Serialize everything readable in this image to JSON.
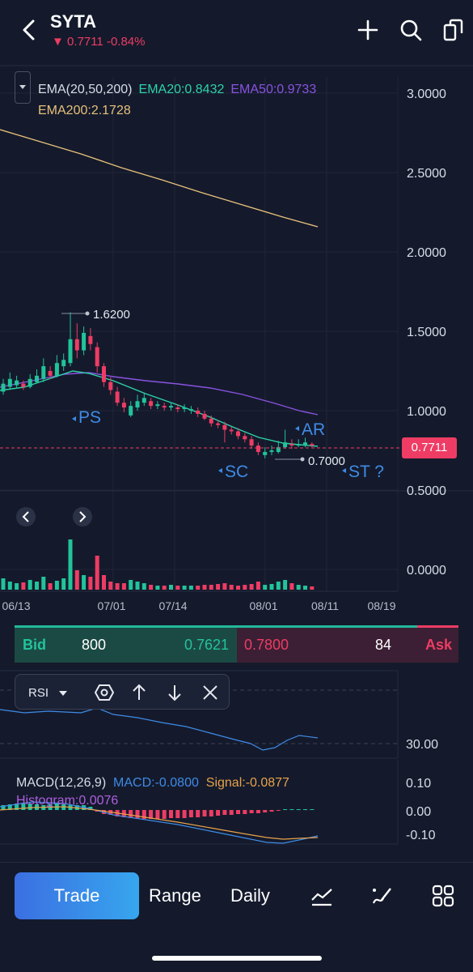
{
  "header": {
    "symbol": "SYTA",
    "price_change": "▼ 0.7711 -0.84%",
    "icons": [
      "back-chevron-icon",
      "plus-icon",
      "search-icon",
      "share-icon"
    ]
  },
  "ema_legend": {
    "params": "EMA(20,50,200)",
    "ema20": "EMA20:0.8432",
    "ema50": "EMA50:0.9733",
    "ema200": "EMA200:2.1728",
    "colors": {
      "ema20": "#2ed3a8",
      "ema50": "#8a52e0",
      "ema200": "#e7c07a"
    }
  },
  "main_chart": {
    "price_axis": [
      "3.0000",
      "2.5000",
      "2.0000",
      "1.5000",
      "1.0000",
      "0.5000",
      "0.0000"
    ],
    "date_axis": [
      "06/13",
      "07/01",
      "07/14",
      "08/01",
      "08/11",
      "08/19"
    ],
    "last_price": "0.7711",
    "high_marker": "1.6200",
    "low_marker": "0.7000",
    "annotations": [
      "PS",
      "SC",
      "AR",
      "ST ?"
    ],
    "colors": {
      "up": "#22c39b",
      "down": "#ee3c64",
      "annotation": "#3f8be6"
    }
  },
  "bid_ask": {
    "bid_label": "Bid",
    "bid_size": "800",
    "bid_price": "0.7621",
    "ask_price": "0.7800",
    "ask_size": "84",
    "ask_label": "Ask"
  },
  "rsi": {
    "label": "RSI",
    "level": "30.00",
    "toolbar_icons": [
      "settings-hexagon-icon",
      "arrow-up-icon",
      "arrow-down-icon",
      "close-icon"
    ]
  },
  "macd": {
    "params": "MACD(12,26,9)",
    "macd": "MACD:-0.0800",
    "signal": "Signal:-0.0877",
    "histogram": "Histogram:0.0076",
    "axis": [
      "0.10",
      "0.00",
      "-0.10"
    ]
  },
  "tabbar": {
    "trade": "Trade",
    "range": "Range",
    "daily": "Daily",
    "icons": [
      "indicator-chart-icon",
      "draw-pen-icon",
      "grid-menu-icon"
    ]
  }
}
